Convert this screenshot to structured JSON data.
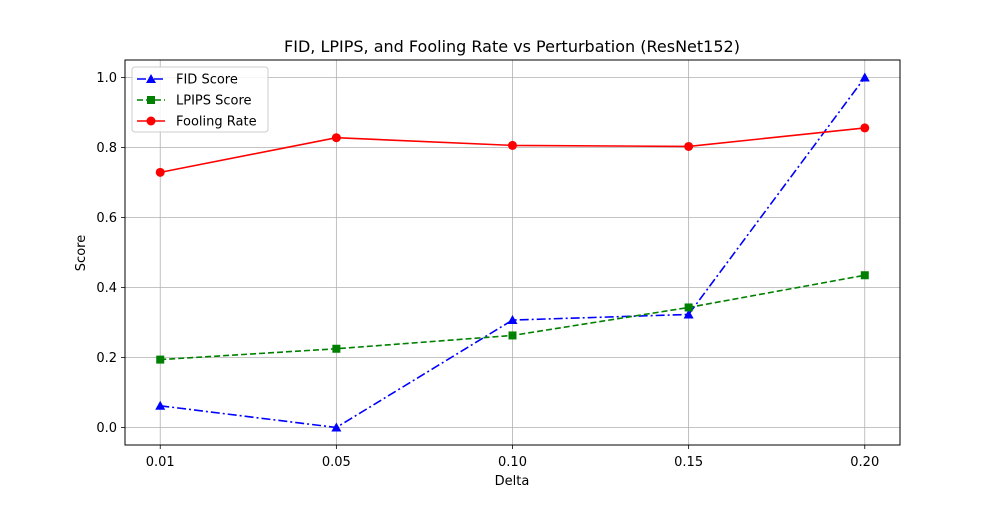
{
  "chart_data": {
    "type": "line",
    "title": "FID, LPIPS, and Fooling Rate vs Perturbation (ResNet152)",
    "xlabel": "Delta",
    "ylabel": "Score",
    "x": [
      0.01,
      0.05,
      0.1,
      0.15,
      0.2
    ],
    "x_tick_labels": [
      "0.01",
      "0.05",
      "0.10",
      "0.15",
      "0.20"
    ],
    "y_ticks": [
      0.0,
      0.2,
      0.4,
      0.6,
      0.8,
      1.0
    ],
    "y_tick_labels": [
      "0.0",
      "0.2",
      "0.4",
      "0.6",
      "0.8",
      "1.0"
    ],
    "xlim": [
      -0.2,
      4.2
    ],
    "ylim": [
      -0.05,
      1.05
    ],
    "grid": true,
    "legend_position": "top-left",
    "series": [
      {
        "name": "FID Score",
        "values": [
          0.062,
          0.0,
          0.307,
          0.323,
          1.0
        ],
        "color": "#0000ff",
        "dash": "dashdot",
        "marker": "triangle"
      },
      {
        "name": "LPIPS Score",
        "values": [
          0.194,
          0.225,
          0.263,
          0.343,
          0.435
        ],
        "color": "#008000",
        "dash": "dashed",
        "marker": "square"
      },
      {
        "name": "Fooling Rate",
        "values": [
          0.729,
          0.828,
          0.806,
          0.803,
          0.856
        ],
        "color": "#ff0000",
        "dash": "solid",
        "marker": "circle"
      }
    ]
  }
}
